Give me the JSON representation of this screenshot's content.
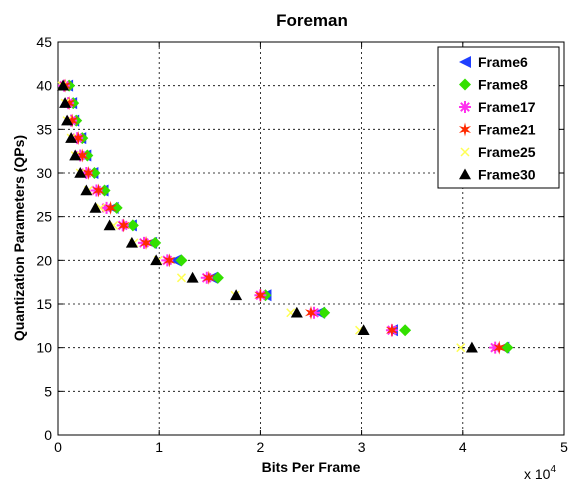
{
  "chart_data": {
    "type": "scatter",
    "title": "Foreman",
    "xlabel": "Bits Per Frame",
    "ylabel": "Quantization Parameters (QPs)",
    "x_multiplier_label": "x 10",
    "x_multiplier_exponent": "4",
    "xlim": [
      0,
      5
    ],
    "ylim": [
      0,
      45
    ],
    "xticks": [
      "0",
      "1",
      "2",
      "3",
      "4",
      "5"
    ],
    "yticks": [
      "0",
      "5",
      "10",
      "15",
      "20",
      "25",
      "30",
      "35",
      "40",
      "45"
    ],
    "grid": true,
    "legend_position": "top-right",
    "series": [
      {
        "name": "Frame6",
        "marker": "triangle-left",
        "color": "#1f3fff",
        "points": [
          [
            0.09,
            40
          ],
          [
            0.13,
            38
          ],
          [
            0.15,
            36
          ],
          [
            0.22,
            34
          ],
          [
            0.27,
            32
          ],
          [
            0.34,
            30
          ],
          [
            0.44,
            28
          ],
          [
            0.54,
            26
          ],
          [
            0.72,
            24
          ],
          [
            0.92,
            22
          ],
          [
            1.16,
            20
          ],
          [
            1.52,
            18
          ],
          [
            2.05,
            16
          ],
          [
            2.58,
            14
          ],
          [
            3.3,
            12
          ],
          [
            4.4,
            10
          ]
        ]
      },
      {
        "name": "Frame8",
        "marker": "diamond",
        "color": "#33e000",
        "points": [
          [
            0.11,
            40
          ],
          [
            0.15,
            38
          ],
          [
            0.18,
            36
          ],
          [
            0.24,
            34
          ],
          [
            0.29,
            32
          ],
          [
            0.36,
            30
          ],
          [
            0.46,
            28
          ],
          [
            0.58,
            26
          ],
          [
            0.74,
            24
          ],
          [
            0.96,
            22
          ],
          [
            1.22,
            20
          ],
          [
            1.58,
            18
          ],
          [
            2.05,
            16
          ],
          [
            2.63,
            14
          ],
          [
            3.43,
            12
          ],
          [
            4.44,
            10
          ]
        ]
      },
      {
        "name": "Frame17",
        "marker": "star",
        "color": "#ff33ee",
        "points": [
          [
            0.06,
            40
          ],
          [
            0.1,
            38
          ],
          [
            0.13,
            36
          ],
          [
            0.19,
            34
          ],
          [
            0.22,
            32
          ],
          [
            0.28,
            30
          ],
          [
            0.38,
            28
          ],
          [
            0.48,
            26
          ],
          [
            0.64,
            24
          ],
          [
            0.85,
            22
          ],
          [
            1.08,
            20
          ],
          [
            1.47,
            18
          ],
          [
            2.0,
            16
          ],
          [
            2.53,
            14
          ],
          [
            3.3,
            12
          ],
          [
            4.32,
            10
          ]
        ]
      },
      {
        "name": "Frame21",
        "marker": "hexagram",
        "color": "#ff2a00",
        "points": [
          [
            0.07,
            40
          ],
          [
            0.11,
            38
          ],
          [
            0.14,
            36
          ],
          [
            0.2,
            34
          ],
          [
            0.24,
            32
          ],
          [
            0.3,
            30
          ],
          [
            0.4,
            28
          ],
          [
            0.52,
            26
          ],
          [
            0.65,
            24
          ],
          [
            0.87,
            22
          ],
          [
            1.1,
            20
          ],
          [
            1.49,
            18
          ],
          [
            2.0,
            16
          ],
          [
            2.5,
            14
          ],
          [
            3.3,
            12
          ],
          [
            4.36,
            10
          ]
        ]
      },
      {
        "name": "Frame25",
        "marker": "x",
        "color": "#ffff55",
        "points": [
          [
            0.04,
            40
          ],
          [
            0.07,
            38
          ],
          [
            0.09,
            36
          ],
          [
            0.13,
            34
          ],
          [
            0.17,
            32
          ],
          [
            0.22,
            30
          ],
          [
            0.3,
            28
          ],
          [
            0.42,
            26
          ],
          [
            0.55,
            24
          ],
          [
            0.75,
            22
          ],
          [
            0.99,
            20
          ],
          [
            1.22,
            18
          ],
          [
            1.75,
            16
          ],
          [
            2.3,
            14
          ],
          [
            2.98,
            12
          ],
          [
            3.98,
            10
          ]
        ]
      },
      {
        "name": "Frame30",
        "marker": "triangle-up",
        "color": "#000000",
        "points": [
          [
            0.05,
            40
          ],
          [
            0.07,
            38
          ],
          [
            0.09,
            36
          ],
          [
            0.13,
            34
          ],
          [
            0.17,
            32
          ],
          [
            0.22,
            30
          ],
          [
            0.28,
            28
          ],
          [
            0.37,
            26
          ],
          [
            0.51,
            24
          ],
          [
            0.73,
            22
          ],
          [
            0.97,
            20
          ],
          [
            1.33,
            18
          ],
          [
            1.76,
            16
          ],
          [
            2.36,
            14
          ],
          [
            3.02,
            12
          ],
          [
            4.09,
            10
          ]
        ]
      }
    ]
  }
}
